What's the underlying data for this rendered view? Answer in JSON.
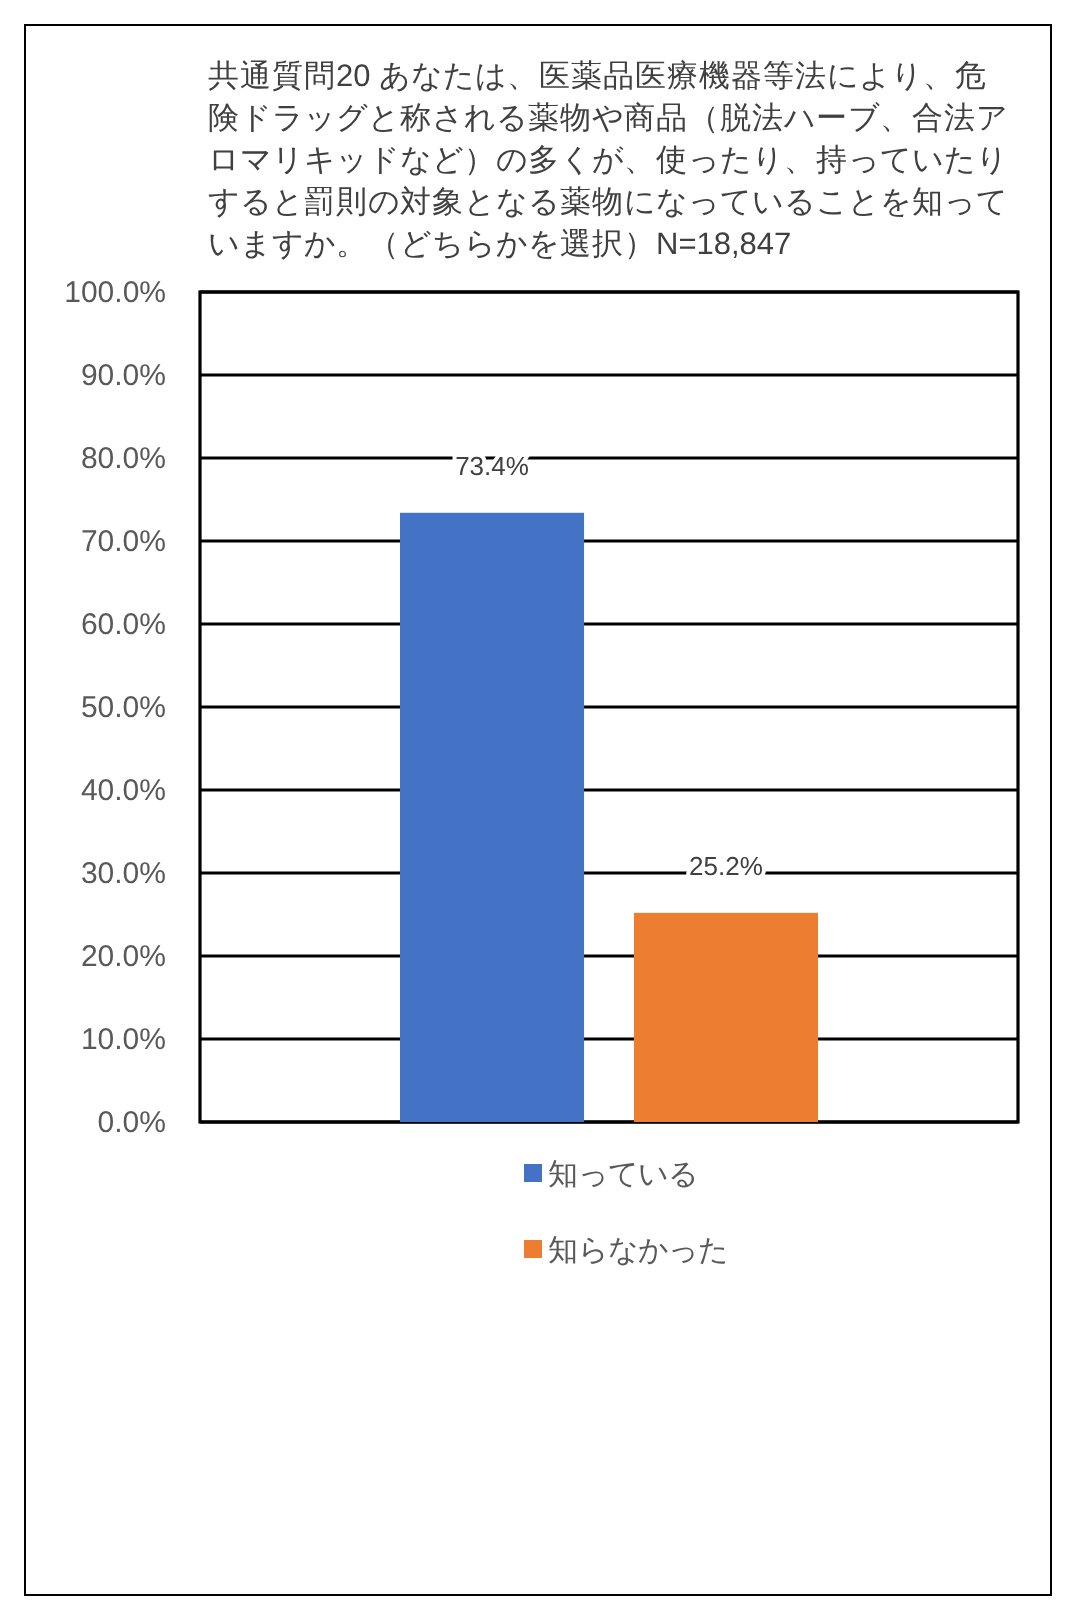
{
  "chart_data": {
    "type": "bar",
    "title": "共通質問20 あなたは、医薬品医療機器等法により、危険ドラッグと称される薬物や商品（脱法ハーブ、合法アロマリキッドなど）の多くが、使ったり、持っていたりすると罰則の対象となる薬物になっていることを知っていますか。（どちらかを選択）N=18,847",
    "categories": [
      null
    ],
    "series": [
      {
        "name": "知っている",
        "color": "#4472c4",
        "values": [
          73.4
        ],
        "value_labels": [
          "73.4%"
        ]
      },
      {
        "name": "知らなかった",
        "color": "#ed7d31",
        "values": [
          25.2
        ],
        "value_labels": [
          "25.2%"
        ]
      }
    ],
    "ylim": [
      0,
      100
    ],
    "yticks": [
      {
        "value": 0,
        "label": "0.0%"
      },
      {
        "value": 10,
        "label": "10.0%"
      },
      {
        "value": 20,
        "label": "20.0%"
      },
      {
        "value": 30,
        "label": "30.0%"
      },
      {
        "value": 40,
        "label": "40.0%"
      },
      {
        "value": 50,
        "label": "50.0%"
      },
      {
        "value": 60,
        "label": "60.0%"
      },
      {
        "value": 70,
        "label": "70.0%"
      },
      {
        "value": 80,
        "label": "80.0%"
      },
      {
        "value": 90,
        "label": "90.0%"
      },
      {
        "value": 100,
        "label": "100.0%"
      }
    ],
    "grid": "y",
    "legend": "bottom"
  }
}
